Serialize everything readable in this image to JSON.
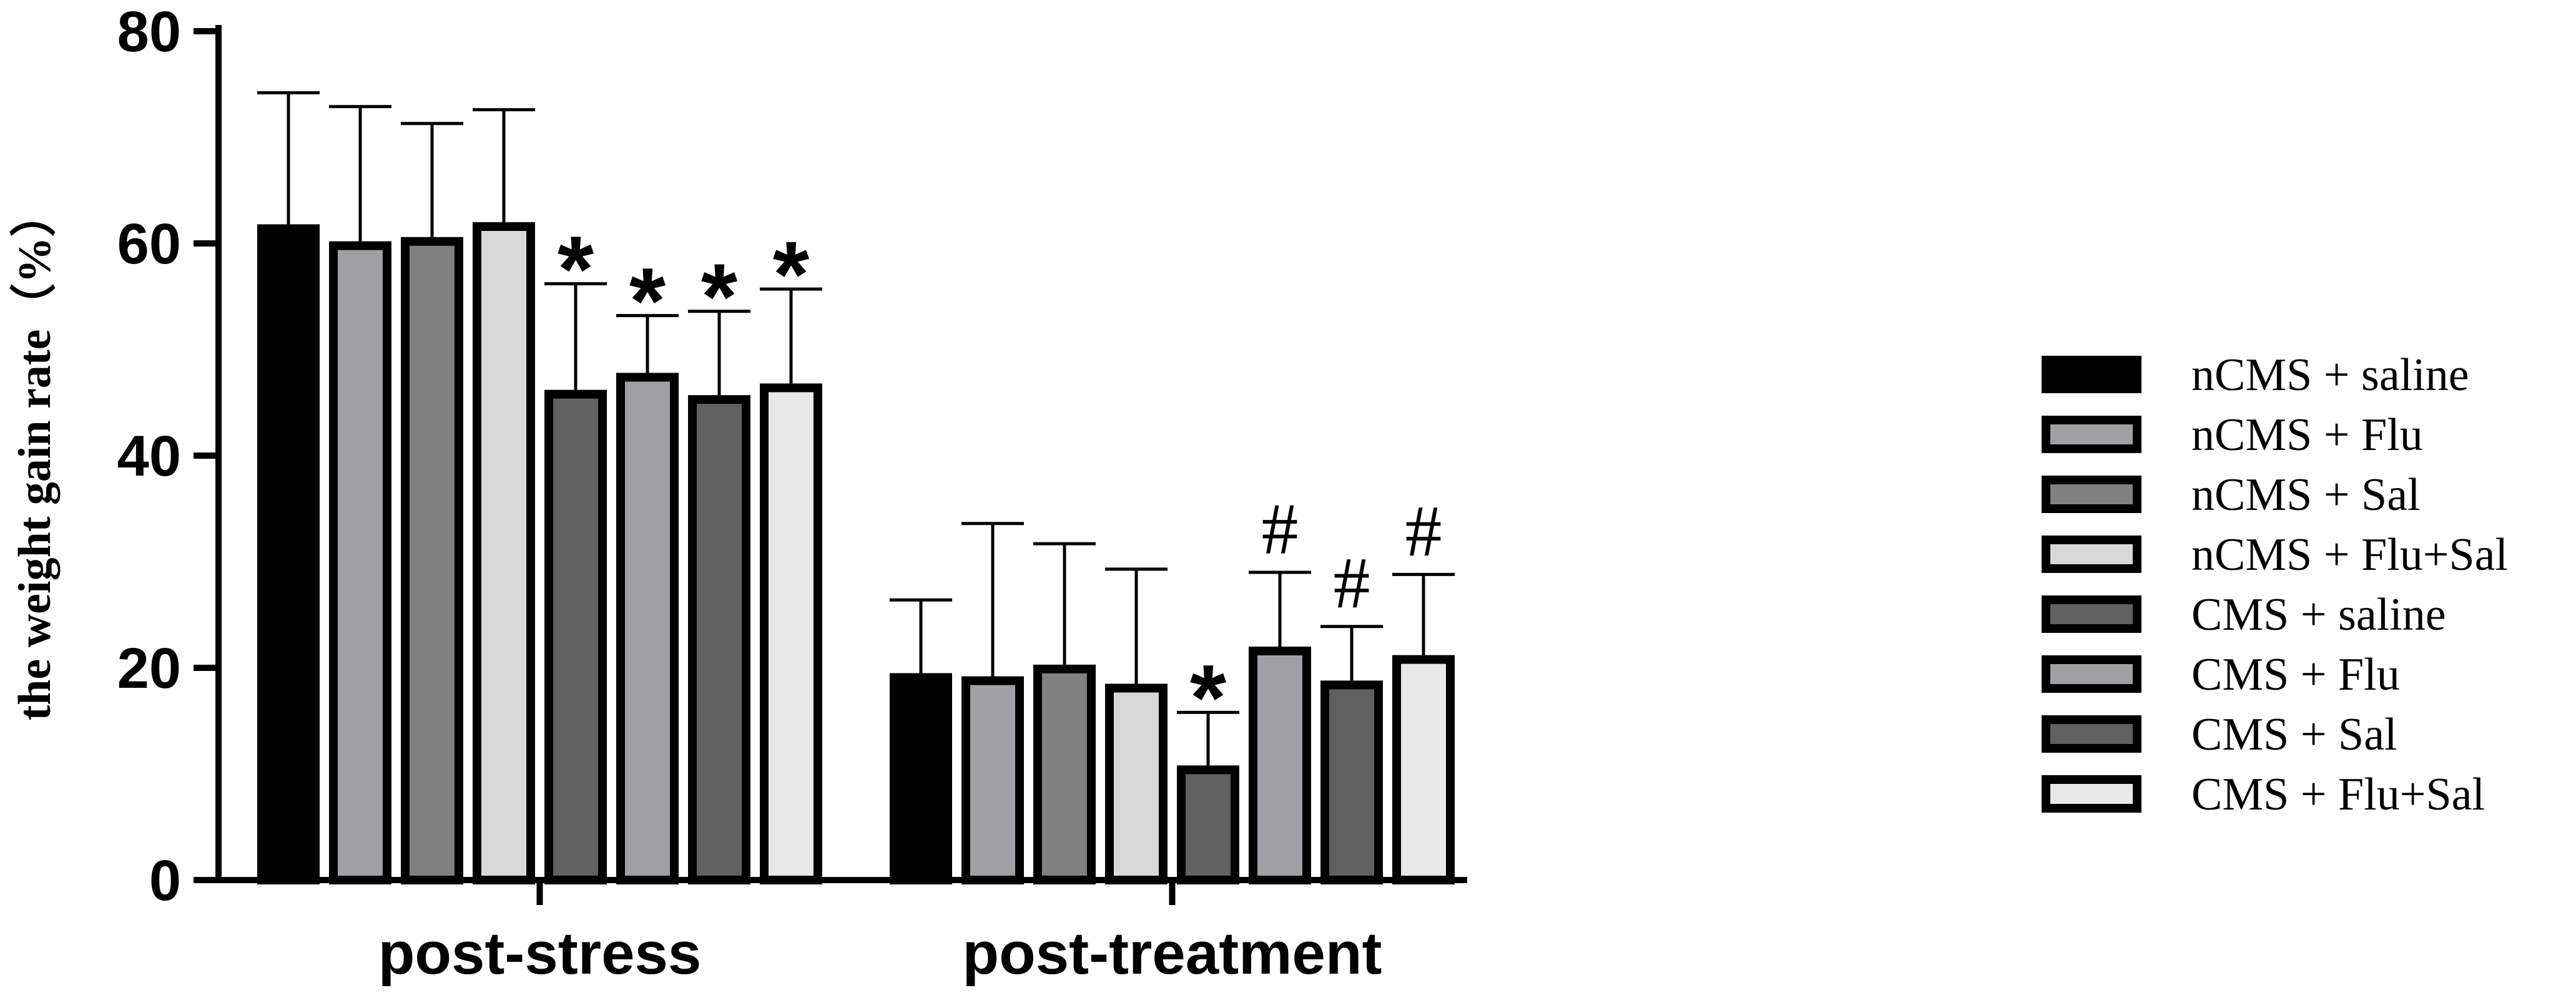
{
  "chart_data": {
    "type": "bar",
    "title": "",
    "xlabel": "",
    "ylabel": "the weight gain rate（%）",
    "ylim": [
      0,
      80
    ],
    "yticks": [
      "0",
      "20",
      "40",
      "60",
      "80"
    ],
    "grid": false,
    "legend_position": "right",
    "categories": [
      "post-stress",
      "post-treatment"
    ],
    "series": [
      {
        "name": "nCMS + saline",
        "color": "#000000",
        "values": [
          61.8,
          19.5
        ],
        "errors": [
          12.4,
          6.9
        ],
        "markers": [
          "",
          ""
        ]
      },
      {
        "name": "nCMS + Flu",
        "color": "#a0a0a4",
        "values": [
          60.2,
          19.2
        ],
        "errors": [
          12.7,
          14.4
        ],
        "markers": [
          "",
          ""
        ]
      },
      {
        "name": "nCMS + Sal",
        "color": "#808080",
        "values": [
          60.6,
          20.3
        ],
        "errors": [
          10.7,
          11.4
        ],
        "markers": [
          "",
          ""
        ]
      },
      {
        "name": "nCMS + Flu+Sal",
        "color": "#d8d8d8",
        "values": [
          62.0,
          18.5
        ],
        "errors": [
          10.6,
          10.8
        ],
        "markers": [
          "",
          ""
        ]
      },
      {
        "name": "CMS + saline",
        "color": "#606060",
        "values": [
          46.2,
          10.8
        ],
        "errors": [
          10.0,
          5.0
        ],
        "markers": [
          "*",
          "*"
        ]
      },
      {
        "name": "CMS + Flu",
        "color": "#a0a0a4",
        "values": [
          47.8,
          22.0
        ],
        "errors": [
          5.4,
          7.0
        ],
        "markers": [
          "*",
          "#"
        ]
      },
      {
        "name": "CMS + Sal",
        "color": "#606060",
        "values": [
          45.7,
          18.8
        ],
        "errors": [
          7.9,
          5.1
        ],
        "markers": [
          "*",
          "#"
        ]
      },
      {
        "name": "CMS + Flu+Sal",
        "color": "#e8e8e8",
        "values": [
          46.8,
          21.2
        ],
        "errors": [
          8.9,
          7.6
        ],
        "markers": [
          "*",
          "#"
        ]
      }
    ]
  }
}
